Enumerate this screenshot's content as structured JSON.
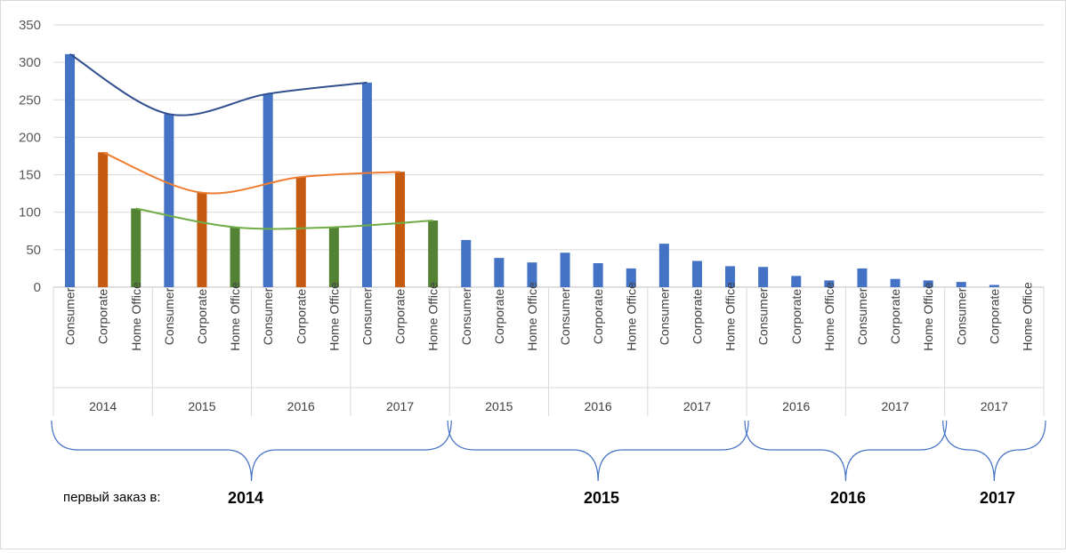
{
  "chart_data": {
    "type": "bar",
    "y_axis": {
      "ylim": [
        0,
        350
      ],
      "ticks": [
        "0",
        "50",
        "100",
        "150",
        "200",
        "250",
        "300",
        "350"
      ]
    },
    "grid": true,
    "colors": {
      "Consumer": "#4472C4",
      "Corporate": "#C55A11",
      "Home Office": "#548235",
      "muted": "#4472C4"
    },
    "trend_colors": {
      "Consumer": "#2F4F8F",
      "Corporate": "#ED7D31",
      "Home Office": "#70AD47"
    },
    "segments": [
      "Consumer",
      "Corporate",
      "Home Office"
    ],
    "cohorts": [
      {
        "first_order_year": "2014",
        "years": [
          {
            "year": "2014",
            "values": [
              311,
              180,
              105
            ]
          },
          {
            "year": "2015",
            "values": [
              231,
              126,
              80
            ]
          },
          {
            "year": "2016",
            "values": [
              258,
              147,
              80
            ]
          },
          {
            "year": "2017",
            "values": [
              273,
              154,
              89
            ]
          }
        ]
      },
      {
        "first_order_year": "2015",
        "years": [
          {
            "year": "2015",
            "values": [
              63,
              39,
              33
            ]
          },
          {
            "year": "2016",
            "values": [
              46,
              32,
              25
            ]
          },
          {
            "year": "2017",
            "values": [
              58,
              35,
              28
            ]
          }
        ]
      },
      {
        "first_order_year": "2016",
        "years": [
          {
            "year": "2016",
            "values": [
              27,
              15,
              9
            ]
          },
          {
            "year": "2017",
            "values": [
              25,
              11,
              9
            ]
          }
        ]
      },
      {
        "first_order_year": "2017",
        "years": [
          {
            "year": "2017",
            "values": [
              7,
              3,
              0
            ]
          }
        ]
      }
    ]
  },
  "cohort_caption": "первый заказ в:"
}
